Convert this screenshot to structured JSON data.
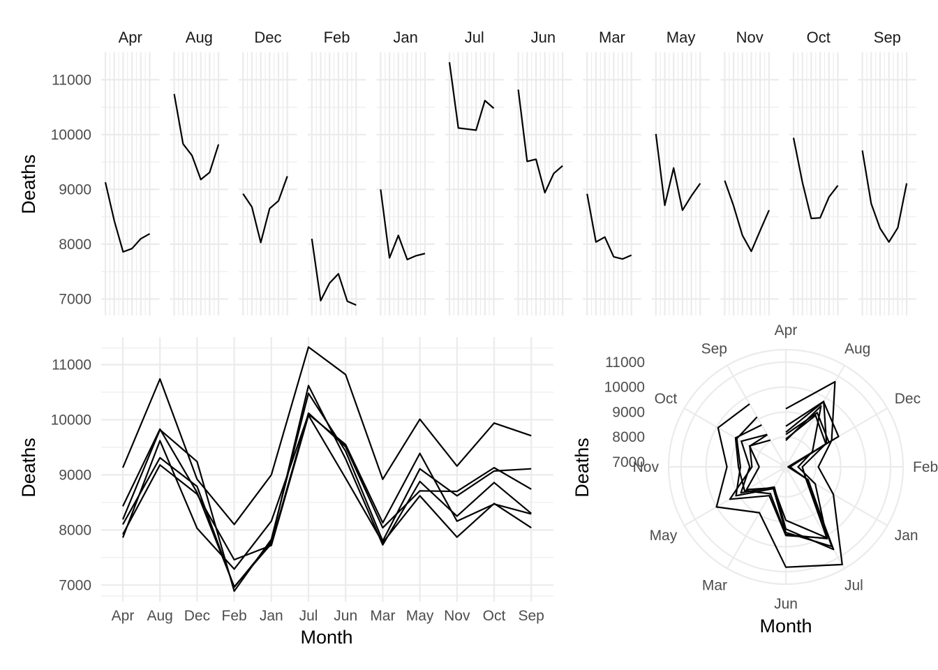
{
  "chart_data": [
    {
      "type": "line",
      "layout": "facets",
      "facets": [
        "Apr",
        "Aug",
        "Dec",
        "Feb",
        "Jan",
        "Jul",
        "Jun",
        "Mar",
        "May",
        "Nov",
        "Oct",
        "Sep"
      ],
      "years": 6,
      "ylabel": "Deaths",
      "xlabel": "",
      "yticks": [
        7000,
        8000,
        9000,
        10000,
        11000
      ],
      "ylim": [
        6700,
        11500
      ],
      "grid": true,
      "legend": "none",
      "series": [
        {
          "facet": "Apr",
          "values": [
            9130,
            8430,
            7860,
            7920,
            8100,
            8190
          ]
        },
        {
          "facet": "Aug",
          "values": [
            10740,
            9830,
            9620,
            9180,
            9310,
            9820
          ]
        },
        {
          "facet": "Dec",
          "values": [
            8920,
            8680,
            8030,
            8650,
            8790,
            9240
          ]
        },
        {
          "facet": "Feb",
          "values": [
            8100,
            6970,
            7290,
            7460,
            6960,
            6890
          ]
        },
        {
          "facet": "Jan",
          "values": [
            9000,
            7750,
            8160,
            7720,
            7790,
            7830
          ]
        },
        {
          "facet": "Jul",
          "values": [
            11320,
            10120,
            10100,
            10080,
            10620,
            10480
          ]
        },
        {
          "facet": "Jun",
          "values": [
            10820,
            9510,
            9550,
            8940,
            9290,
            9430
          ]
        },
        {
          "facet": "Mar",
          "values": [
            8920,
            8040,
            8130,
            7770,
            7730,
            7800
          ]
        },
        {
          "facet": "May",
          "values": [
            10010,
            8710,
            9390,
            8620,
            8880,
            9110
          ]
        },
        {
          "facet": "Nov",
          "values": [
            9160,
            8700,
            8160,
            7870,
            8250,
            8620
          ]
        },
        {
          "facet": "Oct",
          "values": [
            9940,
            9130,
            8470,
            8480,
            8860,
            9070
          ]
        },
        {
          "facet": "Sep",
          "values": [
            9710,
            8740,
            8290,
            8040,
            8300,
            9110
          ]
        }
      ]
    },
    {
      "type": "line",
      "layout": "overlay",
      "categories": [
        "Apr",
        "Aug",
        "Dec",
        "Feb",
        "Jan",
        "Jul",
        "Jun",
        "Mar",
        "May",
        "Nov",
        "Oct",
        "Sep"
      ],
      "xlabel": "Month",
      "ylabel": "Deaths",
      "yticks": [
        7000,
        8000,
        9000,
        10000,
        11000
      ],
      "ylim": [
        6700,
        11500
      ],
      "grid": true,
      "legend": "none"
    },
    {
      "type": "line",
      "layout": "polar",
      "categories": [
        "Apr",
        "Aug",
        "Dec",
        "Feb",
        "Jan",
        "Jul",
        "Jun",
        "Mar",
        "May",
        "Nov",
        "Oct",
        "Sep"
      ],
      "xlabel": "Month",
      "ylabel": "Deaths",
      "yticks": [
        7000,
        8000,
        9000,
        10000,
        11000
      ],
      "ylim": [
        6800,
        11500
      ],
      "grid": true,
      "legend": "none"
    }
  ]
}
